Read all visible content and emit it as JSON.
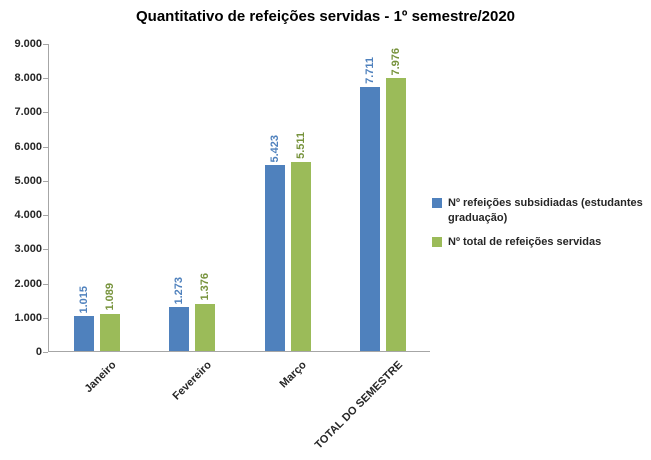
{
  "title": "Quantitativo de refeições servidas - 1º semestre/2020",
  "chart_data": {
    "type": "bar",
    "title": "Quantitativo de refeições servidas - 1º semestre/2020",
    "categories": [
      "Janeiro",
      "Fevereiro",
      "Março",
      "TOTAL DO SEMESTRE"
    ],
    "series": [
      {
        "name": "Nº refeições subsidiadas (estudantes graduação)",
        "color": "#4F81BD",
        "label_color": "#4F81BD",
        "values": [
          1015,
          1273,
          5423,
          7711
        ],
        "labels": [
          "1.015",
          "1.273",
          "5.423",
          "7.711"
        ]
      },
      {
        "name": "Nº total de refeições servidas",
        "color": "#9BBB59",
        "label_color": "#77933C",
        "values": [
          1089,
          1376,
          5511,
          7976
        ],
        "labels": [
          "1.089",
          "1.376",
          "5.511",
          "7.976"
        ]
      }
    ],
    "y_axis": {
      "min": 0,
      "max": 9000,
      "step": 1000,
      "tick_labels": [
        "0",
        "1.000",
        "2.000",
        "3.000",
        "4.000",
        "5.000",
        "6.000",
        "7.000",
        "8.000",
        "9.000"
      ]
    },
    "xlabel": "",
    "ylabel": "",
    "grid": false,
    "legend_position": "right",
    "background_color": "#ffffff",
    "axis_color": "#A6A6A6"
  }
}
